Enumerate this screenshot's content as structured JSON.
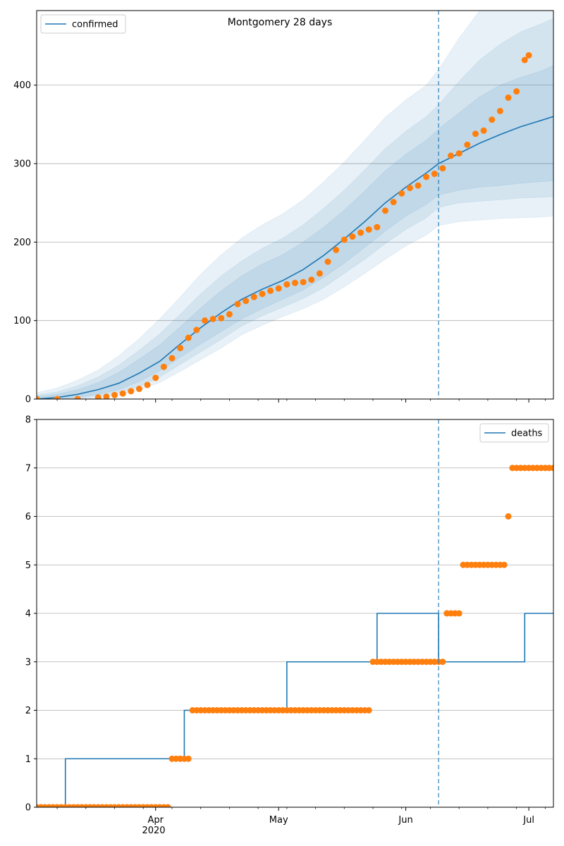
{
  "chart_data": [
    {
      "type": "line",
      "title": "Montgomery 28 days",
      "xlabel": "",
      "ylabel": "",
      "x_range": [
        "2020-03-03",
        "2020-07-07"
      ],
      "ylim": [
        0,
        495
      ],
      "yticks": [
        0,
        100,
        200,
        300,
        400
      ],
      "grid": "y",
      "legend": {
        "position": "top-left",
        "entries": [
          "confirmed"
        ]
      },
      "forecast_start": "2020-06-09",
      "colors": {
        "model": "#1f77b4",
        "observed": "#ff7f0e"
      },
      "model_series": {
        "name": "confirmed",
        "x": [
          "2020-03-03",
          "2020-03-08",
          "2020-03-13",
          "2020-03-18",
          "2020-03-23",
          "2020-03-28",
          "2020-04-02",
          "2020-04-07",
          "2020-04-12",
          "2020-04-17",
          "2020-04-22",
          "2020-04-27",
          "2020-05-02",
          "2020-05-07",
          "2020-05-12",
          "2020-05-17",
          "2020-05-22",
          "2020-05-27",
          "2020-06-01",
          "2020-06-06",
          "2020-06-09",
          "2020-06-14",
          "2020-06-19",
          "2020-06-24",
          "2020-06-29",
          "2020-07-04",
          "2020-07-07"
        ],
        "y": [
          0,
          2,
          6,
          12,
          20,
          33,
          48,
          70,
          91,
          110,
          127,
          140,
          151,
          165,
          183,
          204,
          226,
          250,
          270,
          288,
          300,
          313,
          326,
          337,
          347,
          355,
          360
        ],
        "bands": [
          {
            "lower": [
              0,
              0,
              2,
              6,
              12,
              22,
              36,
              53,
              70,
              86,
              102,
              115,
              127,
              139,
              155,
              173,
              193,
              214,
              233,
              248,
              260,
              266,
              270,
              272,
              275,
              277,
              278
            ],
            "upper": [
              3,
              6,
              12,
              21,
              34,
              51,
              69,
              92,
              116,
              138,
              157,
              172,
              184,
              200,
              219,
              241,
              265,
              291,
              312,
              330,
              344,
              365,
              385,
              400,
              410,
              418,
              425
            ]
          },
          {
            "lower": [
              0,
              0,
              1,
              4,
              8,
              16,
              28,
              44,
              60,
              76,
              93,
              106,
              117,
              128,
              142,
              160,
              178,
              198,
              216,
              231,
              244,
              250,
              252,
              254,
              256,
              257,
              258
            ],
            "upper": [
              5,
              9,
              17,
              28,
              43,
              62,
              83,
              108,
              134,
              157,
              176,
              192,
              205,
              222,
              243,
              266,
              292,
              319,
              341,
              360,
              375,
              405,
              432,
              452,
              468,
              478,
              485
            ]
          },
          {
            "lower": [
              0,
              0,
              0,
              2,
              5,
              11,
              21,
              35,
              50,
              65,
              82,
              94,
              105,
              115,
              127,
              143,
              160,
              178,
              195,
              209,
              221,
              226,
              228,
              230,
              231,
              232,
              233
            ],
            "upper": [
              8,
              14,
              24,
              37,
              55,
              77,
              102,
              130,
              159,
              184,
              205,
              222,
              236,
              254,
              277,
              302,
              330,
              359,
              381,
              400,
              420,
              460,
              495,
              495,
              495,
              495,
              495
            ]
          }
        ]
      },
      "observed": {
        "x": [
          "2020-03-03",
          "2020-03-08",
          "2020-03-13",
          "2020-03-18",
          "2020-03-20",
          "2020-03-22",
          "2020-03-24",
          "2020-03-26",
          "2020-03-28",
          "2020-03-30",
          "2020-04-01",
          "2020-04-03",
          "2020-04-05",
          "2020-04-07",
          "2020-04-09",
          "2020-04-11",
          "2020-04-13",
          "2020-04-15",
          "2020-04-17",
          "2020-04-19",
          "2020-04-21",
          "2020-04-23",
          "2020-04-25",
          "2020-04-27",
          "2020-04-29",
          "2020-05-01",
          "2020-05-03",
          "2020-05-05",
          "2020-05-07",
          "2020-05-09",
          "2020-05-11",
          "2020-05-13",
          "2020-05-15",
          "2020-05-17",
          "2020-05-19",
          "2020-05-21",
          "2020-05-23",
          "2020-05-25",
          "2020-05-27",
          "2020-05-29",
          "2020-05-31",
          "2020-06-02",
          "2020-06-04",
          "2020-06-06",
          "2020-06-08",
          "2020-06-10",
          "2020-06-12",
          "2020-06-14",
          "2020-06-16",
          "2020-06-18",
          "2020-06-20",
          "2020-06-22",
          "2020-06-24",
          "2020-06-26",
          "2020-06-28",
          "2020-06-30",
          "2020-07-01"
        ],
        "y": [
          0,
          0,
          0,
          2,
          3,
          5,
          7,
          10,
          13,
          18,
          27,
          41,
          52,
          65,
          78,
          88,
          100,
          102,
          103,
          108,
          121,
          125,
          130,
          134,
          138,
          141,
          146,
          148,
          149,
          152,
          160,
          175,
          190,
          203,
          207,
          212,
          216,
          219,
          240,
          251,
          262,
          269,
          272,
          283,
          287,
          294,
          310,
          313,
          324,
          338,
          342,
          356,
          367,
          384,
          392,
          432,
          438
        ]
      }
    },
    {
      "type": "line",
      "title": "",
      "xlabel": "",
      "ylabel": "",
      "x_range": [
        "2020-03-03",
        "2020-07-07"
      ],
      "ylim": [
        0,
        8
      ],
      "yticks": [
        0,
        1,
        2,
        3,
        4,
        5,
        6,
        7,
        8
      ],
      "xticks": [
        "Apr",
        "May",
        "Jun",
        "Jul"
      ],
      "xtick_sublabel": "2020",
      "grid": "y",
      "legend": {
        "position": "top-right",
        "entries": [
          "deaths"
        ]
      },
      "forecast_start": "2020-06-09",
      "colors": {
        "model": "#1f77b4",
        "observed": "#ff7f0e"
      },
      "model_series": {
        "name": "deaths",
        "steps": [
          {
            "from": "2020-03-03",
            "value": 0
          },
          {
            "from": "2020-03-10",
            "value": 1
          },
          {
            "from": "2020-04-08",
            "value": 2
          },
          {
            "from": "2020-05-03",
            "value": 3
          },
          {
            "from": "2020-05-25",
            "value": 4
          },
          {
            "from": "2020-06-09",
            "value": 3
          },
          {
            "from": "2020-06-30",
            "value": 4
          }
        ]
      },
      "observed": {
        "steps": [
          {
            "from": "2020-03-03",
            "to": "2020-04-04",
            "value": 0
          },
          {
            "from": "2020-04-05",
            "to": "2020-04-09",
            "value": 1
          },
          {
            "from": "2020-04-10",
            "to": "2020-05-23",
            "value": 2
          },
          {
            "from": "2020-05-24",
            "to": "2020-06-10",
            "value": 3
          },
          {
            "from": "2020-06-11",
            "to": "2020-06-14",
            "value": 4
          },
          {
            "from": "2020-06-15",
            "to": "2020-06-25",
            "value": 5
          },
          {
            "from": "2020-06-26",
            "to": "2020-06-26",
            "value": 6
          },
          {
            "from": "2020-06-27",
            "to": "2020-07-07",
            "value": 7
          }
        ]
      }
    }
  ]
}
